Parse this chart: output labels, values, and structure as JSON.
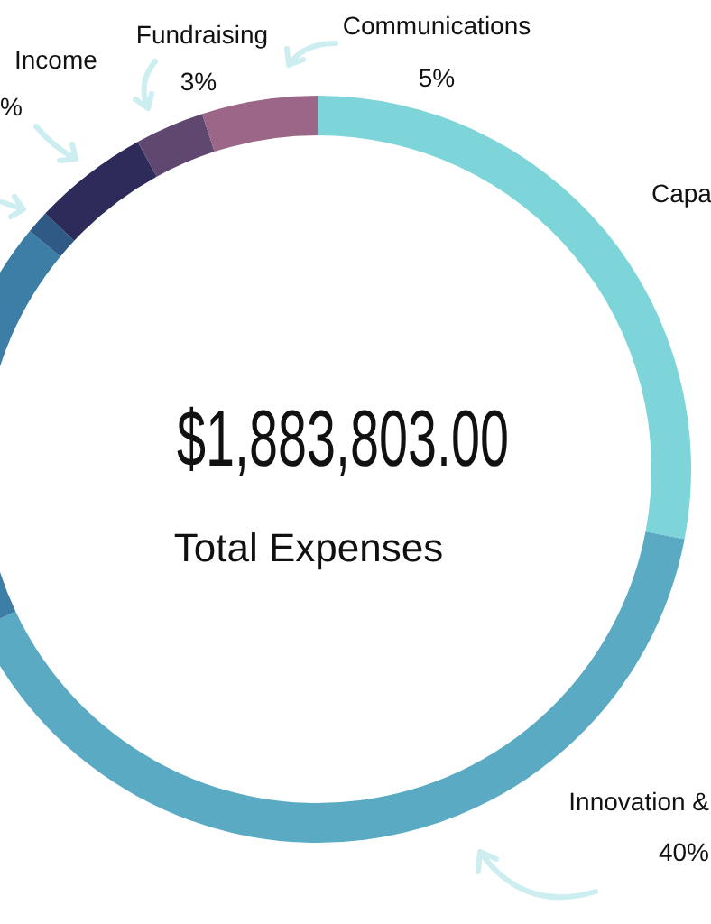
{
  "chart_data": {
    "type": "donut",
    "title": "$1,883,803.00",
    "subtitle": "Total Expenses",
    "categories": [
      "Capa",
      "Innovation &",
      null,
      null,
      "Income",
      "Fundraising",
      "Communications"
    ],
    "values": [
      28,
      40,
      18,
      1,
      5,
      3,
      5
    ],
    "value_labels": [
      null,
      "40%",
      null,
      null,
      "%",
      "3%",
      "5%"
    ],
    "colors": [
      "#7dd5d9",
      "#5aaac4",
      "#3d7ea6",
      "#2f5a85",
      "#2d2b5a",
      "#5f4770",
      "#9b6688"
    ],
    "legend": false
  }
}
